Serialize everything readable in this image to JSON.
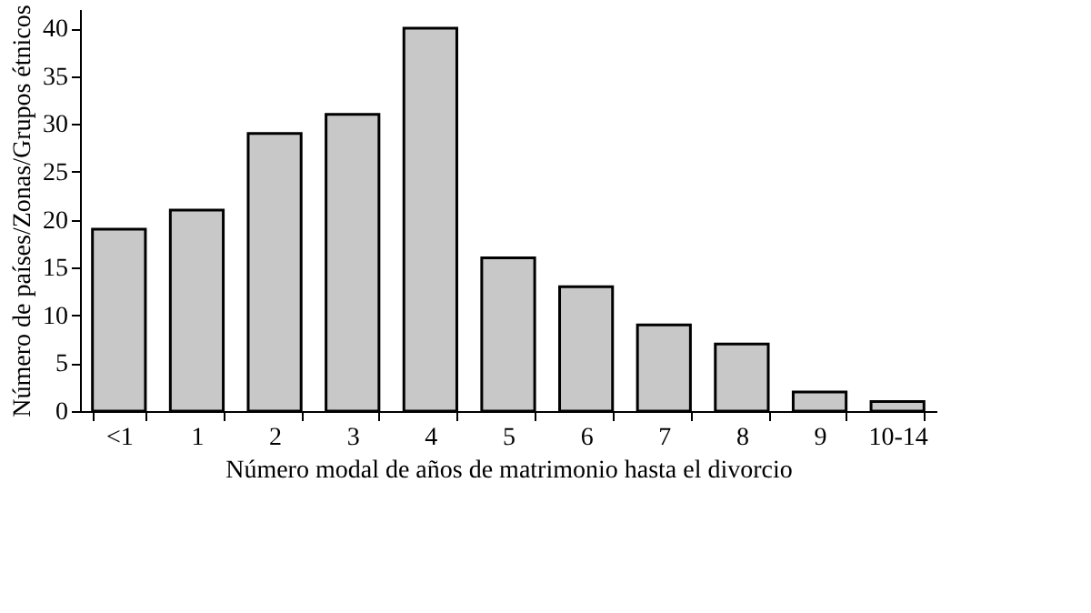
{
  "chart_data": {
    "type": "bar",
    "xlabel": "Número modal de años de matrimonio hasta el divorcio",
    "ylabel": "Número de países/Zonas/Grupos étnicos",
    "categories": [
      "<1",
      "1",
      "2",
      "3",
      "4",
      "5",
      "6",
      "7",
      "8",
      "9",
      "10-14"
    ],
    "values": [
      19,
      21,
      29,
      31,
      40,
      16,
      13,
      9,
      7,
      2,
      1
    ],
    "color": "#c8c8c8",
    "ylim": [
      0,
      42
    ],
    "yticks": [
      0,
      5,
      10,
      15,
      20,
      25,
      30,
      35,
      40
    ],
    "grid": false
  }
}
